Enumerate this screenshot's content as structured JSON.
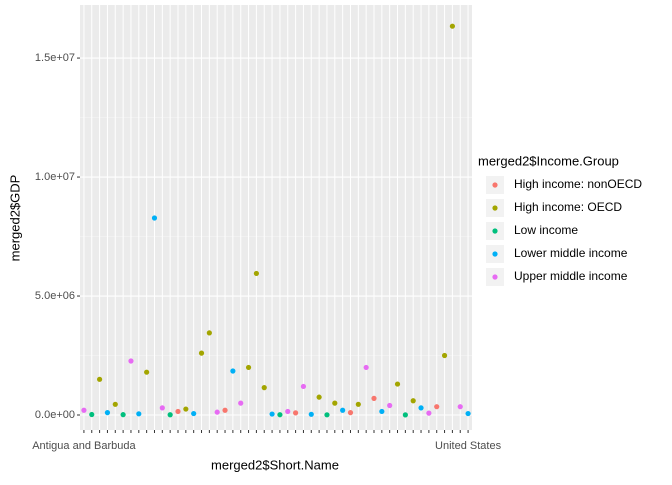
{
  "chart_data": {
    "type": "scatter",
    "x_label": "merged2$Short.Name",
    "y_label": "merged2$GDP",
    "legend_title": "merged2$Income.Group",
    "legend_position": "right",
    "grid": true,
    "categories": [
      "Antigua and Barbuda",
      null,
      null,
      null,
      null,
      null,
      null,
      null,
      null,
      null,
      null,
      null,
      null,
      null,
      null,
      null,
      null,
      null,
      null,
      null,
      null,
      null,
      null,
      null,
      null,
      null,
      null,
      null,
      null,
      null,
      null,
      null,
      null,
      null,
      null,
      null,
      null,
      null,
      null,
      null,
      null,
      null,
      null,
      null,
      null,
      null,
      null,
      null,
      null,
      "United States"
    ],
    "ylim": [
      -630000,
      17230000
    ],
    "yticks": [
      {
        "value": 0,
        "label": "0.0e+00"
      },
      {
        "value": 5000000,
        "label": "5.0e+06"
      },
      {
        "value": 10000000,
        "label": "1.0e+07"
      },
      {
        "value": 15000000,
        "label": "1.5e+07"
      }
    ],
    "series": [
      {
        "name": "High income: nonOECD",
        "color": "#F8766D",
        "values": [
          null,
          null,
          null,
          null,
          null,
          null,
          null,
          null,
          null,
          null,
          null,
          null,
          150000,
          null,
          null,
          null,
          null,
          null,
          200000,
          null,
          null,
          null,
          null,
          null,
          null,
          null,
          null,
          90000,
          null,
          null,
          null,
          null,
          null,
          null,
          100000,
          null,
          null,
          700000,
          null,
          null,
          null,
          null,
          null,
          null,
          null,
          350000,
          null,
          null,
          null,
          null
        ]
      },
      {
        "name": "High income: OECD",
        "color": "#A3A500",
        "values": [
          null,
          null,
          1500000,
          null,
          450000,
          null,
          null,
          null,
          1800000,
          null,
          null,
          null,
          null,
          250000,
          null,
          2600000,
          3450000,
          null,
          null,
          null,
          null,
          2000000,
          5950000,
          1150000,
          null,
          null,
          null,
          null,
          null,
          null,
          750000,
          null,
          500000,
          null,
          null,
          450000,
          null,
          null,
          null,
          null,
          1300000,
          null,
          600000,
          null,
          null,
          null,
          2500000,
          16340000,
          null,
          null
        ]
      },
      {
        "name": "Low income",
        "color": "#00BF7D",
        "values": [
          null,
          20000,
          null,
          null,
          null,
          15000,
          null,
          null,
          null,
          null,
          null,
          10000,
          null,
          null,
          null,
          null,
          null,
          null,
          null,
          null,
          null,
          null,
          null,
          null,
          null,
          12000,
          null,
          null,
          null,
          null,
          null,
          8000,
          null,
          null,
          null,
          null,
          null,
          null,
          null,
          null,
          null,
          5000,
          null,
          null,
          null,
          null,
          null,
          null,
          null,
          null
        ]
      },
      {
        "name": "Lower middle income",
        "color": "#00B0F6",
        "values": [
          null,
          null,
          null,
          100000,
          null,
          null,
          null,
          50000,
          null,
          8280000,
          null,
          null,
          null,
          null,
          60000,
          null,
          null,
          null,
          null,
          1850000,
          null,
          null,
          null,
          null,
          40000,
          null,
          null,
          null,
          null,
          30000,
          null,
          null,
          null,
          200000,
          null,
          null,
          null,
          null,
          150000,
          null,
          null,
          null,
          null,
          300000,
          null,
          null,
          null,
          null,
          null,
          60000
        ]
      },
      {
        "name": "Upper middle income",
        "color": "#E76BF3",
        "values": [
          200000,
          null,
          null,
          null,
          null,
          null,
          2270000,
          null,
          null,
          null,
          300000,
          null,
          null,
          null,
          null,
          null,
          null,
          120000,
          null,
          null,
          500000,
          null,
          null,
          null,
          null,
          null,
          150000,
          null,
          1200000,
          null,
          null,
          null,
          null,
          null,
          null,
          null,
          2000000,
          null,
          null,
          400000,
          null,
          null,
          null,
          null,
          80000,
          null,
          null,
          null,
          350000,
          null
        ]
      }
    ]
  }
}
